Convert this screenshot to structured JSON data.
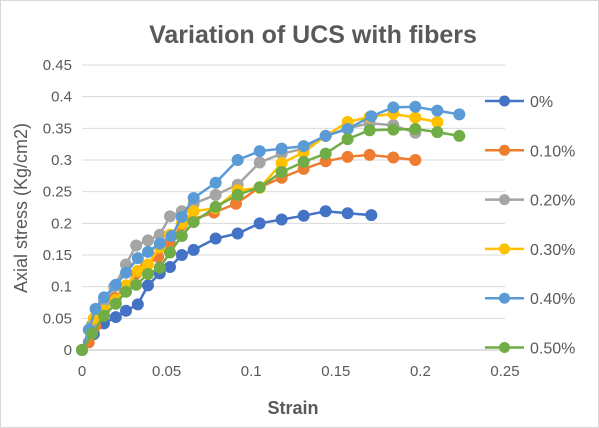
{
  "chart_data": {
    "type": "line",
    "title": "Variation of UCS with fibers",
    "xlabel": "Strain",
    "ylabel": "Axial stress (Kg/cm2)",
    "xlim": [
      0,
      0.25
    ],
    "ylim": [
      0,
      0.45
    ],
    "x_ticks": [
      "0",
      "0.05",
      "0.1",
      "0.15",
      "0.2",
      "0.25"
    ],
    "y_ticks": [
      "0",
      "0.05",
      "0.1",
      "0.15",
      "0.2",
      "0.25",
      "0.3",
      "0.35",
      "0.4",
      "0.45"
    ],
    "x_tick_values": [
      0,
      0.05,
      0.1,
      0.15,
      0.2,
      0.25
    ],
    "y_tick_values": [
      0,
      0.05,
      0.1,
      0.15,
      0.2,
      0.25,
      0.3,
      0.35,
      0.4,
      0.45
    ],
    "grid": "horizontal",
    "legend_position": "right",
    "series": [
      {
        "name": "0%",
        "color": "#4472c4",
        "points": [
          [
            0,
            0
          ],
          [
            0.007,
            0.025
          ],
          [
            0.013,
            0.042
          ],
          [
            0.02,
            0.052
          ],
          [
            0.026,
            0.062
          ],
          [
            0.033,
            0.072
          ],
          [
            0.039,
            0.102
          ],
          [
            0.046,
            0.121
          ],
          [
            0.052,
            0.131
          ],
          [
            0.059,
            0.15
          ],
          [
            0.066,
            0.158
          ],
          [
            0.079,
            0.176
          ],
          [
            0.092,
            0.184
          ],
          [
            0.105,
            0.2
          ],
          [
            0.118,
            0.206
          ],
          [
            0.131,
            0.212
          ],
          [
            0.144,
            0.219
          ],
          [
            0.157,
            0.216
          ],
          [
            0.171,
            0.213
          ]
        ]
      },
      {
        "name": "0.10%",
        "color": "#ed7d31",
        "points": [
          [
            0,
            0
          ],
          [
            0.004,
            0.012
          ],
          [
            0.008,
            0.038
          ],
          [
            0.013,
            0.062
          ],
          [
            0.019,
            0.082
          ],
          [
            0.025,
            0.098
          ],
          [
            0.032,
            0.121
          ],
          [
            0.038,
            0.133
          ],
          [
            0.045,
            0.147
          ],
          [
            0.052,
            0.168
          ],
          [
            0.059,
            0.198
          ],
          [
            0.065,
            0.206
          ],
          [
            0.078,
            0.217
          ],
          [
            0.091,
            0.231
          ],
          [
            0.105,
            0.257
          ],
          [
            0.118,
            0.272
          ],
          [
            0.131,
            0.286
          ],
          [
            0.144,
            0.298
          ],
          [
            0.157,
            0.305
          ],
          [
            0.17,
            0.308
          ],
          [
            0.184,
            0.304
          ],
          [
            0.197,
            0.3
          ]
        ]
      },
      {
        "name": "0.20%",
        "color": "#a5a5a5",
        "points": [
          [
            0,
            0
          ],
          [
            0.006,
            0.04
          ],
          [
            0.013,
            0.075
          ],
          [
            0.019,
            0.1
          ],
          [
            0.026,
            0.135
          ],
          [
            0.032,
            0.165
          ],
          [
            0.039,
            0.173
          ],
          [
            0.046,
            0.182
          ],
          [
            0.052,
            0.211
          ],
          [
            0.059,
            0.219
          ],
          [
            0.066,
            0.231
          ],
          [
            0.079,
            0.245
          ],
          [
            0.092,
            0.261
          ],
          [
            0.105,
            0.296
          ],
          [
            0.118,
            0.31
          ],
          [
            0.131,
            0.318
          ],
          [
            0.144,
            0.338
          ],
          [
            0.157,
            0.35
          ],
          [
            0.17,
            0.358
          ],
          [
            0.184,
            0.355
          ],
          [
            0.197,
            0.343
          ]
        ]
      },
      {
        "name": "0.30%",
        "color": "#ffc000",
        "points": [
          [
            0,
            0
          ],
          [
            0.007,
            0.05
          ],
          [
            0.013,
            0.062
          ],
          [
            0.02,
            0.079
          ],
          [
            0.026,
            0.102
          ],
          [
            0.033,
            0.125
          ],
          [
            0.039,
            0.135
          ],
          [
            0.046,
            0.162
          ],
          [
            0.052,
            0.182
          ],
          [
            0.059,
            0.2
          ],
          [
            0.066,
            0.219
          ],
          [
            0.079,
            0.224
          ],
          [
            0.092,
            0.252
          ],
          [
            0.105,
            0.256
          ],
          [
            0.118,
            0.295
          ],
          [
            0.131,
            0.312
          ],
          [
            0.144,
            0.338
          ],
          [
            0.157,
            0.36
          ],
          [
            0.17,
            0.368
          ],
          [
            0.184,
            0.373
          ],
          [
            0.197,
            0.367
          ],
          [
            0.21,
            0.36
          ]
        ]
      },
      {
        "name": "0.40%",
        "color": "#5b9bd5",
        "points": [
          [
            0,
            0
          ],
          [
            0.004,
            0.032
          ],
          [
            0.008,
            0.065
          ],
          [
            0.013,
            0.083
          ],
          [
            0.02,
            0.103
          ],
          [
            0.026,
            0.122
          ],
          [
            0.033,
            0.145
          ],
          [
            0.039,
            0.155
          ],
          [
            0.046,
            0.168
          ],
          [
            0.053,
            0.18
          ],
          [
            0.059,
            0.21
          ],
          [
            0.066,
            0.24
          ],
          [
            0.079,
            0.264
          ],
          [
            0.092,
            0.3
          ],
          [
            0.105,
            0.314
          ],
          [
            0.118,
            0.318
          ],
          [
            0.131,
            0.322
          ],
          [
            0.144,
            0.338
          ],
          [
            0.157,
            0.349
          ],
          [
            0.171,
            0.369
          ],
          [
            0.184,
            0.383
          ],
          [
            0.197,
            0.384
          ],
          [
            0.21,
            0.378
          ],
          [
            0.223,
            0.372
          ]
        ]
      },
      {
        "name": "0.50%",
        "color": "#70ad47",
        "points": [
          [
            0,
            0
          ],
          [
            0.006,
            0.026
          ],
          [
            0.013,
            0.054
          ],
          [
            0.02,
            0.073
          ],
          [
            0.026,
            0.092
          ],
          [
            0.032,
            0.103
          ],
          [
            0.039,
            0.12
          ],
          [
            0.046,
            0.13
          ],
          [
            0.052,
            0.154
          ],
          [
            0.059,
            0.18
          ],
          [
            0.066,
            0.202
          ],
          [
            0.079,
            0.226
          ],
          [
            0.092,
            0.245
          ],
          [
            0.105,
            0.257
          ],
          [
            0.118,
            0.281
          ],
          [
            0.131,
            0.297
          ],
          [
            0.144,
            0.31
          ],
          [
            0.157,
            0.333
          ],
          [
            0.17,
            0.347
          ],
          [
            0.184,
            0.348
          ],
          [
            0.197,
            0.349
          ],
          [
            0.21,
            0.344
          ],
          [
            0.223,
            0.338
          ]
        ]
      }
    ]
  }
}
